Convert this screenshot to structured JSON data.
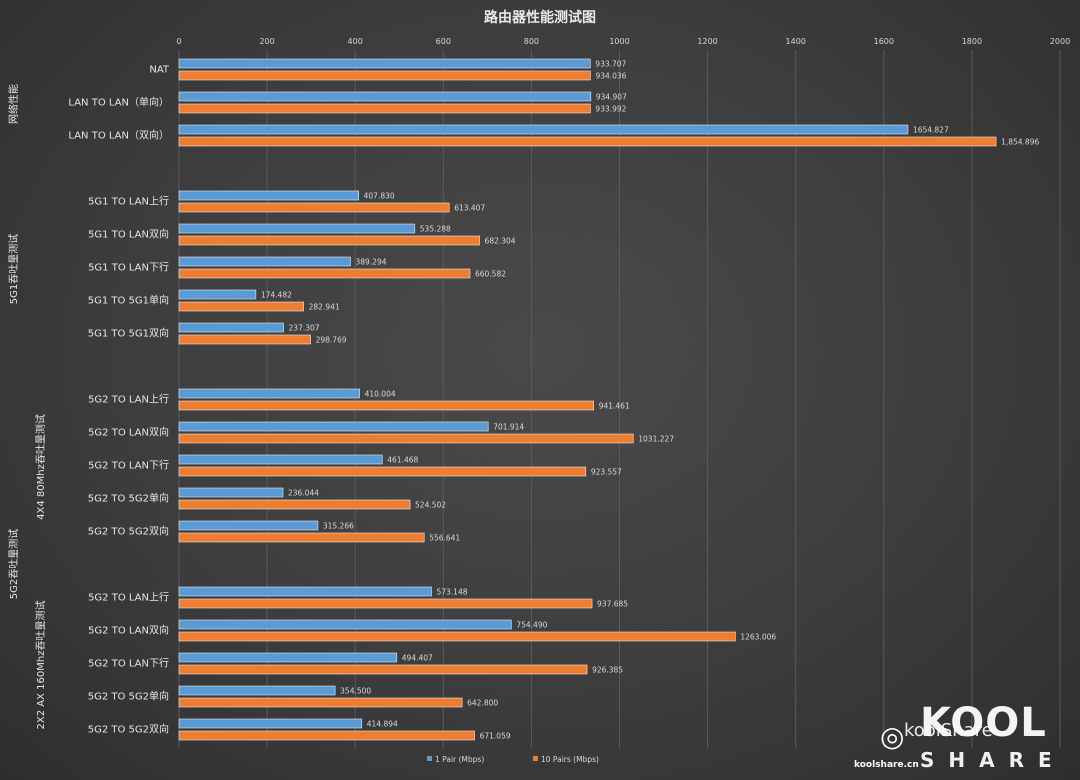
{
  "chart_data": {
    "type": "bar",
    "orientation": "horizontal",
    "title": "路由器性能测试图",
    "xlim": [
      0,
      2000
    ],
    "xticks": [
      0,
      200,
      400,
      600,
      800,
      1000,
      1200,
      1400,
      1600,
      1800,
      2000
    ],
    "grid": true,
    "legend_position": "bottom",
    "series": [
      {
        "name": "1 Pair (Mbps)",
        "color": "#5b9bd5"
      },
      {
        "name": "10 Pairs (Mbps)",
        "color": "#ed7d31"
      }
    ],
    "groups": [
      {
        "label": "网络性能",
        "items": [
          {
            "category": "NAT",
            "values": [
              933.707,
              934.036
            ],
            "labels": [
              "933.707",
              "934.036"
            ]
          },
          {
            "category": "LAN TO LAN（单向）",
            "values": [
              934.907,
              933.992
            ],
            "labels": [
              "934.907",
              "933.992"
            ]
          },
          {
            "category": "LAN TO LAN（双向）",
            "values": [
              1654.827,
              1854.896
            ],
            "labels": [
              "1654.827",
              "1,854.896"
            ]
          }
        ]
      },
      {
        "label": "5G1吞吐量测试",
        "items": [
          {
            "category": "5G1 TO LAN上行",
            "values": [
              407.83,
              613.407
            ],
            "labels": [
              "407.830",
              "613.407"
            ]
          },
          {
            "category": "5G1 TO LAN双向",
            "values": [
              535.288,
              682.304
            ],
            "labels": [
              "535.288",
              "682.304"
            ]
          },
          {
            "category": "5G1 TO LAN下行",
            "values": [
              389.294,
              660.582
            ],
            "labels": [
              "389.294",
              "660.582"
            ]
          },
          {
            "category": "5G1 TO 5G1单向",
            "values": [
              174.482,
              282.941
            ],
            "labels": [
              "174.482",
              "282.941"
            ]
          },
          {
            "category": "5G1 TO 5G1双向",
            "values": [
              237.307,
              298.769
            ],
            "labels": [
              "237.307",
              "298.769"
            ]
          }
        ]
      },
      {
        "label": "4X4 80Mhz吞吐量测试",
        "items": [
          {
            "category": "5G2 TO LAN上行",
            "values": [
              410.004,
              941.461
            ],
            "labels": [
              "410.004",
              "941.461"
            ]
          },
          {
            "category": "5G2 TO LAN双向",
            "values": [
              701.914,
              1031.227
            ],
            "labels": [
              "701.914",
              "1031.227"
            ]
          },
          {
            "category": "5G2 TO LAN下行",
            "values": [
              461.468,
              923.557
            ],
            "labels": [
              "461.468",
              "923.557"
            ]
          },
          {
            "category": "5G2 TO 5G2单向",
            "values": [
              236.044,
              524.502
            ],
            "labels": [
              "236.044",
              "524.502"
            ]
          },
          {
            "category": "5G2 TO 5G2双向",
            "values": [
              315.266,
              556.641
            ],
            "labels": [
              "315.266",
              "556.641"
            ]
          }
        ]
      },
      {
        "label": "2X2 AX 160Mhz吞吐量测试",
        "items": [
          {
            "category": "5G2 TO LAN上行",
            "values": [
              573.148,
              937.685
            ],
            "labels": [
              "573.148",
              "937.685"
            ]
          },
          {
            "category": "5G2 TO LAN双向",
            "values": [
              754.49,
              1263.006
            ],
            "labels": [
              "754.490",
              "1263.006"
            ]
          },
          {
            "category": "5G2 TO LAN下行",
            "values": [
              494.407,
              926.385
            ],
            "labels": [
              "494.407",
              "926.385"
            ]
          },
          {
            "category": "5G2 TO 5G2单向",
            "values": [
              354.5,
              642.8
            ],
            "labels": [
              "354.500",
              "642.800"
            ]
          },
          {
            "category": "5G2 TO 5G2双向",
            "values": [
              414.894,
              671.059
            ],
            "labels": [
              "414.894",
              "671.059"
            ]
          }
        ]
      }
    ],
    "outer_group_label": "5G2吞吐量测试"
  },
  "watermark": {
    "logo_text": "KOOL",
    "sub_text": "koolShare",
    "share_text": "SHARE",
    "site": "koolshare.cn"
  }
}
